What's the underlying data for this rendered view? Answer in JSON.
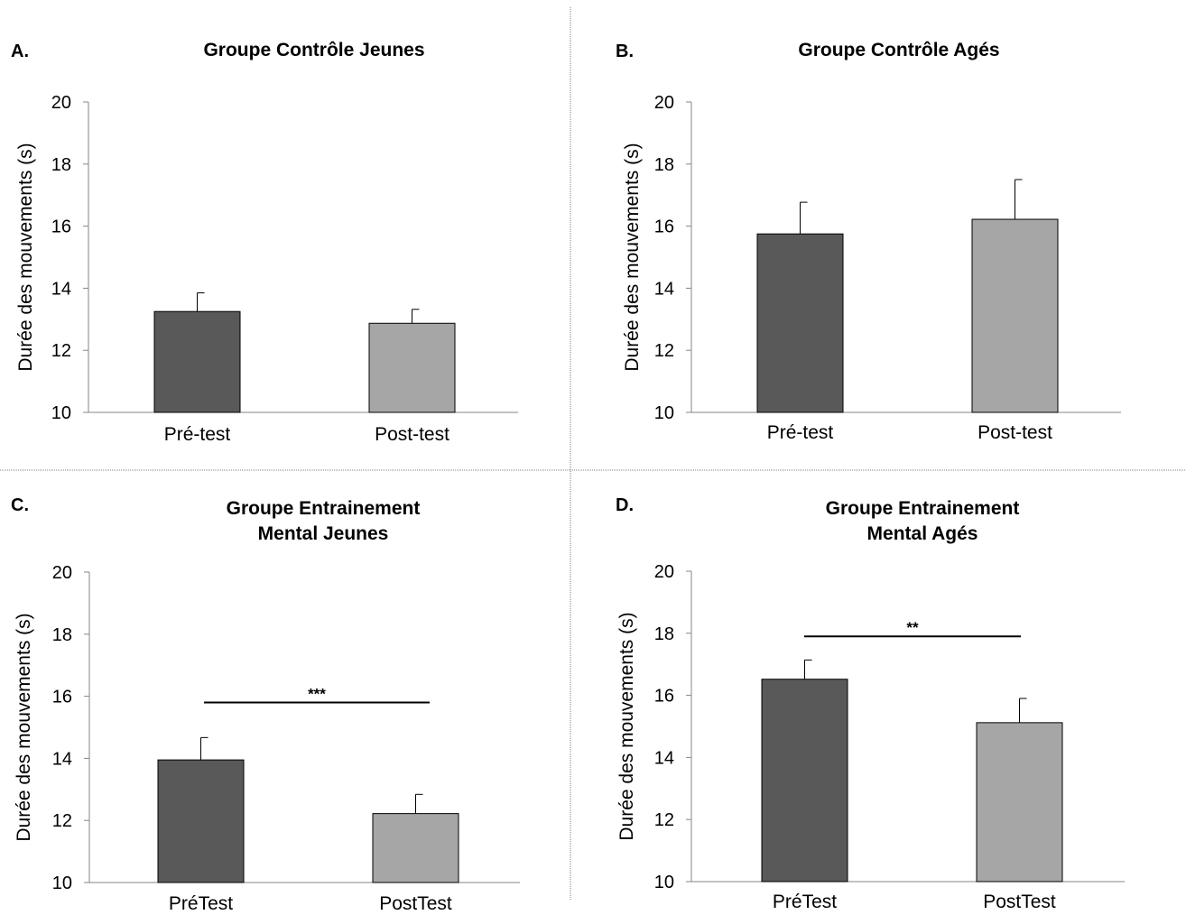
{
  "figure": {
    "separator_color": "#808080",
    "colors": {
      "pre": "#595959",
      "post": "#a6a6a6",
      "edge": "#000000"
    }
  },
  "chart_data": [
    {
      "type": "bar",
      "panel": "A.",
      "title": [
        "Groupe Contrôle Jeunes"
      ],
      "ylabel": "Durée des mouvements (s)",
      "categories": [
        "Pré-test",
        "Post-test"
      ],
      "values": [
        13.25,
        12.87
      ],
      "errors": [
        0.6,
        0.45
      ],
      "ylim": [
        10,
        20
      ],
      "yticks": [
        "10",
        "12",
        "14",
        "16",
        "18",
        "20"
      ],
      "significance": null
    },
    {
      "type": "bar",
      "panel": "B.",
      "title": [
        "Groupe Contrôle Agés"
      ],
      "ylabel": "Durée des mouvements (s)",
      "categories": [
        "Pré-test",
        "Post-test"
      ],
      "values": [
        15.75,
        16.22
      ],
      "errors": [
        1.02,
        1.28
      ],
      "ylim": [
        10,
        20
      ],
      "yticks": [
        "10",
        "12",
        "14",
        "16",
        "18",
        "20"
      ],
      "significance": null
    },
    {
      "type": "bar",
      "panel": "C.",
      "title": [
        "Groupe Entrainement",
        "Mental Jeunes"
      ],
      "ylabel": "Durée des mouvements (s)",
      "categories": [
        "PréTest",
        "PostTest"
      ],
      "values": [
        13.95,
        12.22
      ],
      "errors": [
        0.72,
        0.62
      ],
      "ylim": [
        10,
        20
      ],
      "yticks": [
        "10",
        "12",
        "14",
        "16",
        "18",
        "20"
      ],
      "significance": {
        "label": "***",
        "at": 15.8
      }
    },
    {
      "type": "bar",
      "panel": "D.",
      "title": [
        "Groupe Entrainement",
        "Mental Agés"
      ],
      "ylabel": "Durée des mouvements (s)",
      "categories": [
        "PréTest",
        "PostTest"
      ],
      "values": [
        16.52,
        15.12
      ],
      "errors": [
        0.62,
        0.78
      ],
      "ylim": [
        10,
        20
      ],
      "yticks": [
        "10",
        "12",
        "14",
        "16",
        "18",
        "20"
      ],
      "significance": {
        "label": "**",
        "at": 17.9
      }
    }
  ]
}
